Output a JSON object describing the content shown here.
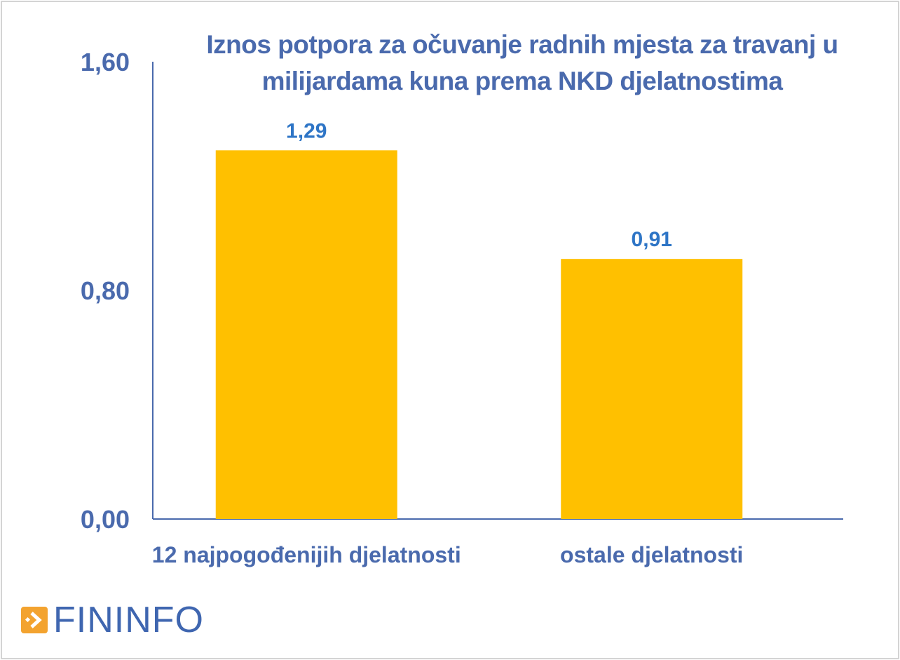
{
  "chart_data": {
    "type": "bar",
    "title": "Iznos potpora za očuvanje radnih mjesta za travanj u milijardama kuna prema NKD djelatnostima",
    "categories": [
      "12 najpogođenijih djelatnosti",
      "ostale djelatnosti"
    ],
    "values": [
      1.29,
      0.91
    ],
    "data_labels": [
      "1,29",
      "0,91"
    ],
    "ylim": [
      0,
      1.6
    ],
    "yticks": [
      0,
      0.8,
      1.6
    ],
    "ytick_labels": [
      "0,00",
      "0,80",
      "1,60"
    ],
    "grid": false,
    "xlabel": "",
    "ylabel": "",
    "colors": {
      "bar": "#ffc000",
      "axis_text": "#4a6aad",
      "data_label": "#2e75c6",
      "axis_line": "#4a6aad"
    }
  },
  "logo": {
    "text": "FININFO",
    "icon": "orange-arrow-box-icon",
    "color": "#3f66b0",
    "icon_color": "#f3a32f"
  }
}
